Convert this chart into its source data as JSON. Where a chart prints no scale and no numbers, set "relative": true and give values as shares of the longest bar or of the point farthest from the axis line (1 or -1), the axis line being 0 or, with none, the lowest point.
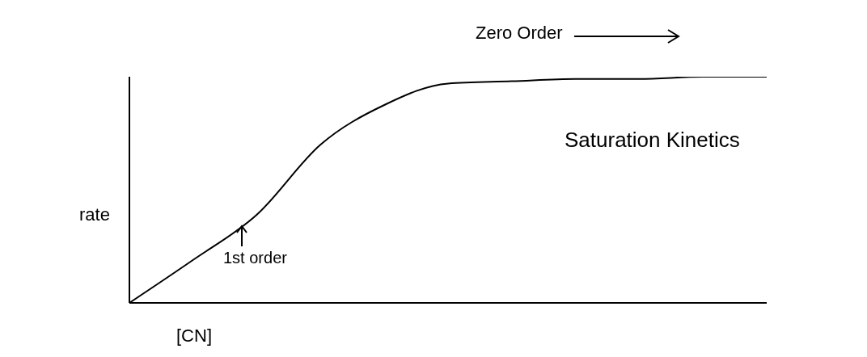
{
  "chart_data": {
    "type": "line",
    "title": "Saturation Kinetics",
    "xlabel": "[CN]",
    "ylabel": "rate",
    "relative": true,
    "categories": [
      null,
      null,
      null,
      null,
      null,
      null,
      null,
      null,
      null,
      null,
      null
    ],
    "series": [
      {
        "color": "#000000",
        "values": [
          0,
          0.19,
          0.39,
          0.7,
          0.875,
          0.97,
          0.98,
          0.99,
          0.99,
          1,
          1
        ]
      }
    ],
    "annotations": [
      "Zero Order",
      "1st order"
    ],
    "grid": false,
    "legend": false,
    "marker": "none",
    "line_style": "solid"
  }
}
